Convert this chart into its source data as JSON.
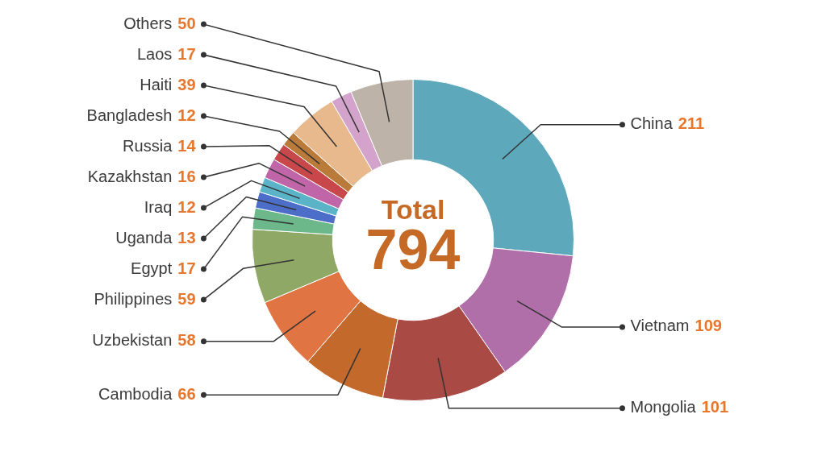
{
  "chart_data": {
    "type": "donut",
    "categories": [
      "China",
      "Vietnam",
      "Mongolia",
      "Cambodia",
      "Uzbekistan",
      "Philippines",
      "Egypt",
      "Uganda",
      "Iraq",
      "Kazakhstan",
      "Russia",
      "Bangladesh",
      "Haiti",
      "Laos",
      "Others"
    ],
    "values": [
      211,
      109,
      101,
      66,
      58,
      59,
      17,
      13,
      12,
      16,
      14,
      12,
      39,
      17,
      50
    ],
    "colors": [
      "#5ea8bb",
      "#b06fa8",
      "#a94a45",
      "#c2692b",
      "#e07442",
      "#8fa866",
      "#6cb88a",
      "#4d6ec8",
      "#5bb3c8",
      "#c065a8",
      "#c8474a",
      "#b97a3a",
      "#e8b98c",
      "#d4a3cc",
      "#bdb3a8"
    ],
    "data_labels": true,
    "annotations": [
      "Total",
      "794"
    ]
  }
}
